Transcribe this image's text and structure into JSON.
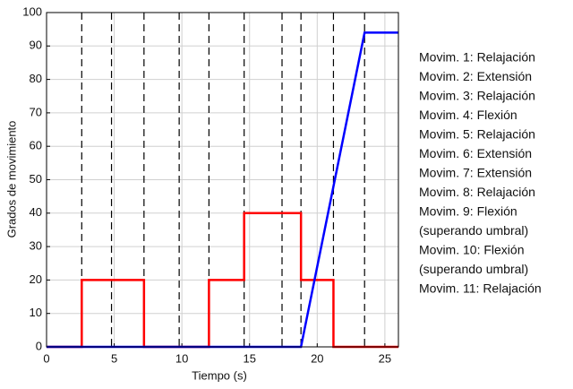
{
  "chart_data": {
    "type": "line",
    "xlabel": "Tiempo (s)",
    "ylabel": "Grados de movimiento",
    "xlim": [
      0,
      26
    ],
    "ylim": [
      0,
      100
    ],
    "xticks": [
      0,
      5,
      10,
      15,
      20,
      25
    ],
    "yticks": [
      0,
      10,
      20,
      30,
      40,
      50,
      60,
      70,
      80,
      90,
      100
    ],
    "grid": true,
    "vlines": [
      2.6,
      4.8,
      7.2,
      9.8,
      12.0,
      14.6,
      17.4,
      18.8,
      21.2,
      23.5
    ],
    "series": [
      {
        "color": "#ff0000",
        "x": [
          0,
          2.6,
          2.6,
          7.2,
          7.2,
          12.0,
          12.0,
          14.6,
          14.6,
          18.8,
          18.8,
          21.2,
          21.2,
          26
        ],
        "values": [
          0,
          0,
          20,
          20,
          0,
          0,
          20,
          20,
          40,
          40,
          20,
          20,
          0,
          0
        ]
      },
      {
        "color": "#0000ff",
        "x": [
          0,
          18.8,
          23.5,
          26
        ],
        "values": [
          0,
          0,
          94,
          94
        ]
      }
    ],
    "annotations": [
      "Movim. 1: Relajación",
      "Movim. 2: Extensión",
      "Movim. 3: Relajación",
      "Movim. 4: Flexión",
      "Movim. 5: Relajación",
      "Movim. 6: Extensión",
      "Movim. 7: Extensión",
      "Movim. 8: Relajación",
      "Movim. 9: Flexión",
      "(superando umbral)",
      "Movim. 10: Flexión",
      "(superando umbral)",
      "Movim. 11: Relajación"
    ]
  }
}
